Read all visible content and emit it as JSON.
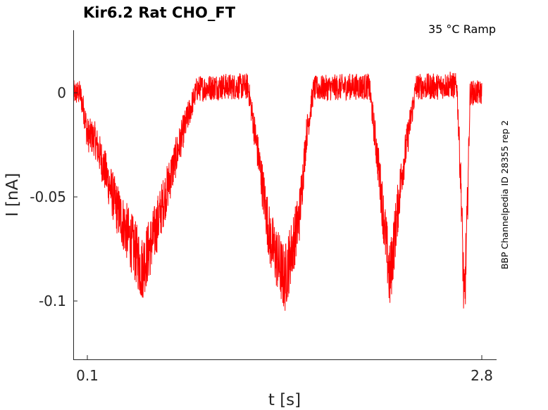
{
  "chart_data": {
    "type": "line",
    "title": "Kir6.2  Rat  CHO_FT",
    "condition": "35 °C  Ramp",
    "side_note": "BBP Channelpedia ID 28355 rep 2",
    "xlabel": "t [s]",
    "ylabel": "I [nA]",
    "xlim": [
      0.0,
      2.8
    ],
    "ylim": [
      -0.128,
      0.03
    ],
    "x_ticks": [
      {
        "value": 0.1,
        "label": "0.1"
      },
      {
        "value": 2.8,
        "label": "2.8"
      }
    ],
    "y_ticks": [
      {
        "value": 0,
        "label": "0"
      },
      {
        "value": -0.05,
        "label": "-0.05"
      },
      {
        "value": -0.1,
        "label": "-0.1"
      }
    ],
    "grid": false,
    "series": [
      {
        "color": "#ff0000",
        "x": [
          0.0,
          0.05,
          0.08,
          0.1,
          0.15,
          0.3,
          0.45,
          0.47,
          0.55,
          0.75,
          0.85,
          1.0,
          1.1,
          1.2,
          1.28,
          1.35,
          1.45,
          1.55,
          1.6,
          1.65,
          1.9,
          2.03,
          2.1,
          2.17,
          2.25,
          2.35,
          2.5,
          2.58,
          2.63,
          2.66,
          2.68,
          2.7,
          2.72,
          2.8
        ],
        "y": [
          0.0,
          0.0,
          -0.01,
          -0.02,
          -0.022,
          -0.055,
          -0.08,
          -0.085,
          -0.07,
          -0.02,
          0.002,
          0.003,
          0.003,
          0.003,
          -0.035,
          -0.07,
          -0.09,
          -0.06,
          -0.02,
          0.002,
          0.003,
          0.003,
          -0.04,
          -0.09,
          -0.04,
          0.003,
          0.003,
          0.004,
          0.003,
          -0.05,
          -0.105,
          -0.06,
          0.0,
          0.0
        ]
      }
    ]
  }
}
